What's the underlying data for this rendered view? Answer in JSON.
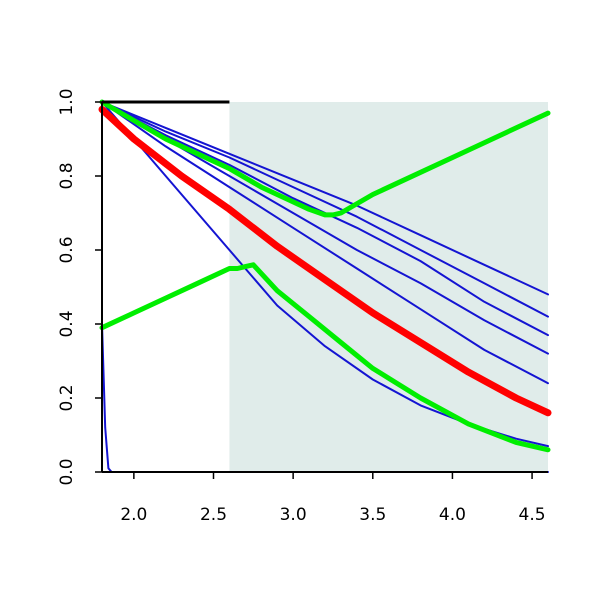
{
  "chart_data": {
    "type": "line",
    "title": "",
    "xlabel": "",
    "ylabel": "",
    "xlim": [
      1.8,
      4.6
    ],
    "ylim": [
      0.0,
      1.0
    ],
    "x_ticks": [
      2.0,
      2.5,
      3.0,
      3.5,
      4.0,
      4.5
    ],
    "x_tick_labels": [
      "2.0",
      "2.5",
      "3.0",
      "3.5",
      "4.0",
      "4.5"
    ],
    "y_ticks": [
      0.0,
      0.2,
      0.4,
      0.6,
      0.8,
      1.0
    ],
    "y_tick_labels": [
      "0.0",
      "0.2",
      "0.4",
      "0.6",
      "0.8",
      "1.0"
    ],
    "grid": false,
    "shaded_region": {
      "x_from": 2.6,
      "x_to": 4.6,
      "color": "#e0ecea"
    },
    "series": [
      {
        "color": "#1414d2",
        "width": 2,
        "x": [
          1.8,
          1.82,
          1.84,
          1.86,
          4.6
        ],
        "y": [
          0.4,
          0.12,
          0.01,
          0.0,
          0.0
        ]
      },
      {
        "color": "#1414d2",
        "width": 2,
        "x": [
          1.8,
          2.0,
          2.3,
          2.6,
          2.9,
          3.2,
          3.5,
          3.8,
          4.1,
          4.4,
          4.6
        ],
        "y": [
          1.0,
          0.9,
          0.75,
          0.6,
          0.45,
          0.34,
          0.25,
          0.18,
          0.13,
          0.09,
          0.07
        ]
      },
      {
        "color": "#1414d2",
        "width": 2,
        "x": [
          1.8,
          2.2,
          2.6,
          3.0,
          3.4,
          3.8,
          4.2,
          4.6
        ],
        "y": [
          1.0,
          0.88,
          0.77,
          0.66,
          0.55,
          0.44,
          0.33,
          0.24
        ]
      },
      {
        "color": "#1414d2",
        "width": 2,
        "x": [
          1.8,
          2.2,
          2.6,
          3.0,
          3.4,
          3.8,
          4.2,
          4.6
        ],
        "y": [
          1.0,
          0.9,
          0.8,
          0.7,
          0.6,
          0.51,
          0.41,
          0.32
        ]
      },
      {
        "color": "#1414d2",
        "width": 2,
        "x": [
          1.8,
          2.2,
          2.6,
          3.0,
          3.4,
          3.8,
          4.2,
          4.6
        ],
        "y": [
          1.0,
          0.91,
          0.83,
          0.74,
          0.66,
          0.57,
          0.46,
          0.37
        ]
      },
      {
        "color": "#1414d2",
        "width": 2,
        "x": [
          1.8,
          2.2,
          2.6,
          3.0,
          3.4,
          3.8,
          4.2,
          4.6
        ],
        "y": [
          1.0,
          0.92,
          0.85,
          0.77,
          0.69,
          0.6,
          0.51,
          0.42
        ]
      },
      {
        "color": "#1414d2",
        "width": 2,
        "x": [
          1.8,
          2.2,
          2.6,
          3.0,
          3.4,
          3.8,
          4.2,
          4.6
        ],
        "y": [
          1.0,
          0.93,
          0.86,
          0.79,
          0.72,
          0.64,
          0.56,
          0.48
        ]
      },
      {
        "color": "#ff0000",
        "width": 7,
        "x": [
          1.8,
          2.0,
          2.3,
          2.6,
          2.9,
          3.2,
          3.5,
          3.8,
          4.1,
          4.4,
          4.6
        ],
        "y": [
          0.98,
          0.9,
          0.8,
          0.71,
          0.61,
          0.52,
          0.43,
          0.35,
          0.27,
          0.2,
          0.16
        ]
      },
      {
        "color": "#00ee00",
        "width": 5,
        "x": [
          1.8,
          2.0,
          2.2,
          2.4,
          2.6,
          2.8,
          3.0,
          3.1,
          3.2,
          3.25,
          3.3,
          3.5,
          3.8,
          4.1,
          4.4,
          4.6
        ],
        "y": [
          1.0,
          0.95,
          0.9,
          0.86,
          0.82,
          0.77,
          0.73,
          0.71,
          0.695,
          0.695,
          0.7,
          0.75,
          0.81,
          0.87,
          0.93,
          0.97
        ]
      },
      {
        "color": "#00ee00",
        "width": 5,
        "x": [
          1.8,
          2.0,
          2.2,
          2.4,
          2.6,
          2.65,
          2.7,
          2.75,
          2.9,
          3.1,
          3.3,
          3.5,
          3.8,
          4.1,
          4.4,
          4.6
        ],
        "y": [
          0.39,
          0.43,
          0.47,
          0.51,
          0.55,
          0.55,
          0.555,
          0.56,
          0.49,
          0.42,
          0.35,
          0.28,
          0.2,
          0.13,
          0.08,
          0.06
        ]
      }
    ]
  }
}
